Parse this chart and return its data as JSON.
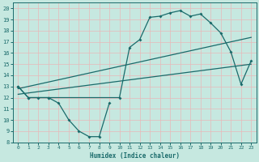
{
  "xlabel": "Humidex (Indice chaleur)",
  "xlim": [
    -0.5,
    23.5
  ],
  "ylim": [
    8,
    20.5
  ],
  "yticks": [
    8,
    9,
    10,
    11,
    12,
    13,
    14,
    15,
    16,
    17,
    18,
    19,
    20
  ],
  "xticks": [
    0,
    1,
    2,
    3,
    4,
    5,
    6,
    7,
    8,
    9,
    10,
    11,
    12,
    13,
    14,
    15,
    16,
    17,
    18,
    19,
    20,
    21,
    22,
    23
  ],
  "bg_color": "#c6e8e0",
  "grid_color": "#e8b8b8",
  "line_color": "#1a6b6b",
  "line1_x": [
    0,
    1,
    2,
    3,
    4,
    5,
    6,
    7,
    8,
    9
  ],
  "line1_y": [
    13.0,
    12.0,
    12.0,
    12.0,
    11.5,
    10.0,
    9.0,
    8.5,
    8.5,
    11.5
  ],
  "line2_x": [
    0,
    1,
    3,
    10,
    11,
    12,
    13,
    14,
    15,
    16,
    17,
    18,
    19,
    20,
    21,
    22,
    23
  ],
  "line2_y": [
    13.0,
    12.0,
    12.0,
    12.0,
    16.5,
    17.2,
    19.2,
    19.3,
    19.6,
    19.8,
    19.3,
    19.5,
    18.7,
    17.8,
    16.1,
    13.2,
    15.3
  ],
  "line3_x": [
    0,
    23
  ],
  "line3_y": [
    12.3,
    15.0
  ],
  "line4_x": [
    0,
    23
  ],
  "line4_y": [
    12.8,
    17.4
  ]
}
